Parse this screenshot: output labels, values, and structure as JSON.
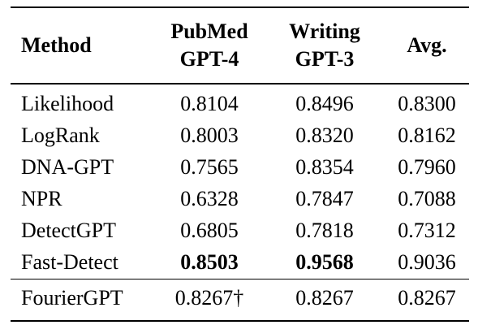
{
  "table": {
    "headers": [
      [
        "Method"
      ],
      [
        "PubMed",
        "GPT-4"
      ],
      [
        "Writing",
        "GPT-3"
      ],
      [
        "Avg."
      ]
    ],
    "rows": [
      {
        "method": "Likelihood",
        "pubmed": "0.8104",
        "writing": "0.8496",
        "avg": "0.8300",
        "bold": []
      },
      {
        "method": "LogRank",
        "pubmed": "0.8003",
        "writing": "0.8320",
        "avg": "0.8162",
        "bold": []
      },
      {
        "method": "DNA-GPT",
        "pubmed": "0.7565",
        "writing": "0.8354",
        "avg": "0.7960",
        "bold": []
      },
      {
        "method": "NPR",
        "pubmed": "0.6328",
        "writing": "0.7847",
        "avg": "0.7088",
        "bold": []
      },
      {
        "method": "DetectGPT",
        "pubmed": "0.6805",
        "writing": "0.7818",
        "avg": "0.7312",
        "bold": []
      },
      {
        "method": "Fast-Detect",
        "pubmed": "0.8503",
        "writing": "0.9568",
        "avg": "0.9036",
        "bold": [
          "pubmed",
          "writing"
        ]
      }
    ],
    "footer_row": {
      "method": "FourierGPT",
      "pubmed": "0.8267†",
      "writing": "0.8267",
      "avg": "0.8267",
      "bold": []
    }
  }
}
